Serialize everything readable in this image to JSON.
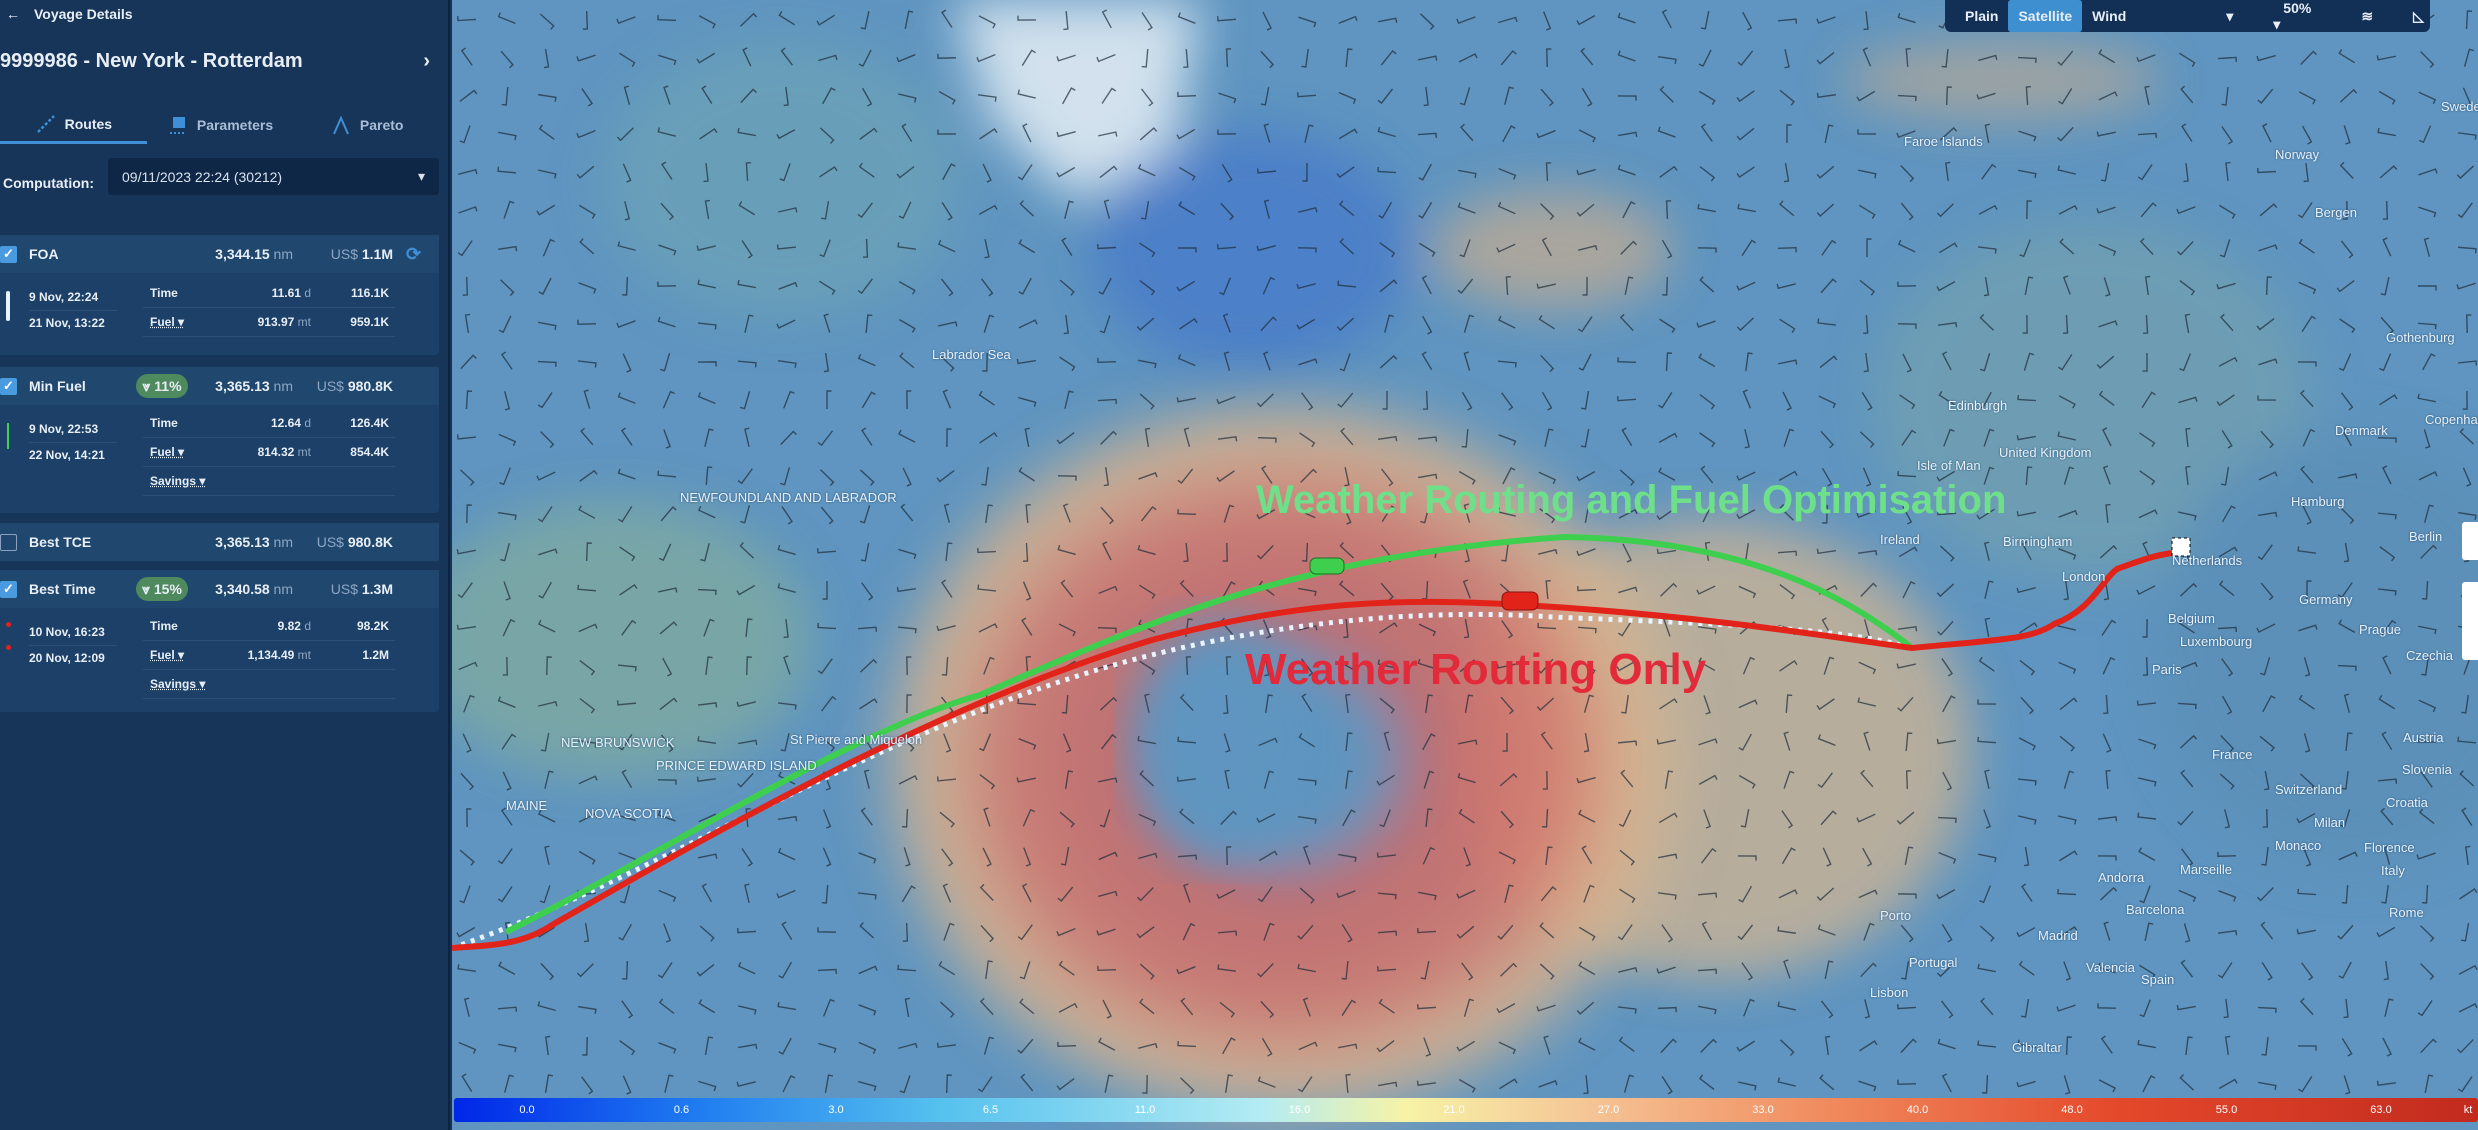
{
  "sidebar": {
    "header": "Voyage Details",
    "voyage_title": "9999986 - New York - Rotterdam",
    "tabs": [
      {
        "label": "Routes",
        "icon": "route-icon",
        "active": true
      },
      {
        "label": "Parameters",
        "icon": "flag-icon"
      },
      {
        "label": "Pareto",
        "icon": "compass-icon"
      }
    ],
    "computation_label": "Computation:",
    "computation_value": "09/11/2023 22:24 (30212)",
    "routes": [
      {
        "name": "FOA",
        "checked": true,
        "distance": "3,344.15",
        "distance_unit": "nm",
        "currency": "US$",
        "cost": "1.1M",
        "start": "9 Nov, 22:24",
        "end": "21 Nov, 13:22",
        "time": "11.61",
        "time_unit": "d",
        "time_cost": "116.1K",
        "fuel_label": "Fuel",
        "fuel": "913.97",
        "fuel_unit": "mt",
        "fuel_cost": "959.1K",
        "color": "#e8f4ff"
      },
      {
        "name": "Min Fuel",
        "checked": true,
        "badge": "11%",
        "distance": "3,365.13",
        "distance_unit": "nm",
        "currency": "US$",
        "cost": "980.8K",
        "start": "9 Nov, 22:53",
        "end": "22 Nov, 14:21",
        "time": "12.64",
        "time_unit": "d",
        "time_cost": "126.4K",
        "fuel_label": "Fuel",
        "fuel": "814.32",
        "fuel_unit": "mt",
        "fuel_cost": "854.4K",
        "savings_label": "Savings",
        "color": "#3fcf4f"
      },
      {
        "name": "Best TCE",
        "checked": false,
        "distance": "3,365.13",
        "distance_unit": "nm",
        "currency": "US$",
        "cost": "980.8K"
      },
      {
        "name": "Best Time",
        "checked": true,
        "badge": "15%",
        "distance": "3,340.58",
        "distance_unit": "nm",
        "currency": "US$",
        "cost": "1.3M",
        "start": "10 Nov, 16:23",
        "end": "20 Nov, 12:09",
        "time": "9.82",
        "time_unit": "d",
        "time_cost": "98.2K",
        "fuel_label": "Fuel",
        "fuel": "1,134.49",
        "fuel_unit": "mt",
        "fuel_cost": "1.2M",
        "savings_label": "Savings",
        "color": "#e2231a"
      }
    ]
  },
  "map": {
    "controls": {
      "plain": "Plain",
      "satellite": "Satellite",
      "wind": "Wind",
      "opacity": "50%",
      "active": "Satellite"
    },
    "labels": {
      "green": "Weather Routing and Fuel Optimisation",
      "red": "Weather Routing Only"
    },
    "places": [
      "Labrador Sea",
      "NEWFOUNDLAND AND LABRADOR",
      "NEW BRUNSWICK",
      "PRINCE EDWARD ISLAND",
      "NOVA SCOTIA",
      "MAINE",
      "St Pierre and Miquelon",
      "Faroe Islands",
      "Norway",
      "Sweden",
      "Bergen",
      "Gothenburg",
      "Denmark",
      "Copenhagen",
      "Edinburgh",
      "United Kingdom",
      "Isle of Man",
      "Ireland",
      "Birmingham",
      "London",
      "Hamburg",
      "Berlin",
      "Germany",
      "Netherlands",
      "Belgium",
      "Luxembourg",
      "Paris",
      "France",
      "Prague",
      "Czechia",
      "Switzerland",
      "Austria",
      "Milan",
      "Slovenia",
      "Croatia",
      "Monaco",
      "Marseille",
      "Andorra",
      "Barcelona",
      "Porto",
      "Portugal",
      "Madrid",
      "Spain",
      "Valencia",
      "Lisbon",
      "Gibraltar",
      "Italy",
      "Florence",
      "Rome"
    ],
    "legend": {
      "ticks": [
        "0.0",
        "0.6",
        "3.0",
        "6.5",
        "11.0",
        "16.0",
        "21.0",
        "27.0",
        "33.0",
        "40.0",
        "48.0",
        "55.0",
        "63.0"
      ],
      "unit": "kt",
      "colors": [
        "#0026e8",
        "#55c1ee",
        "#f6f3a6",
        "#c22a1e"
      ]
    }
  }
}
